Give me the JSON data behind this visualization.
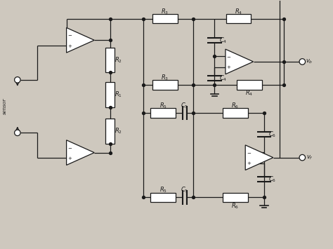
{
  "bg_color": "#cec8be",
  "line_color": "#1a1a1a",
  "fig_width": 4.74,
  "fig_height": 3.55,
  "dpi": 100
}
